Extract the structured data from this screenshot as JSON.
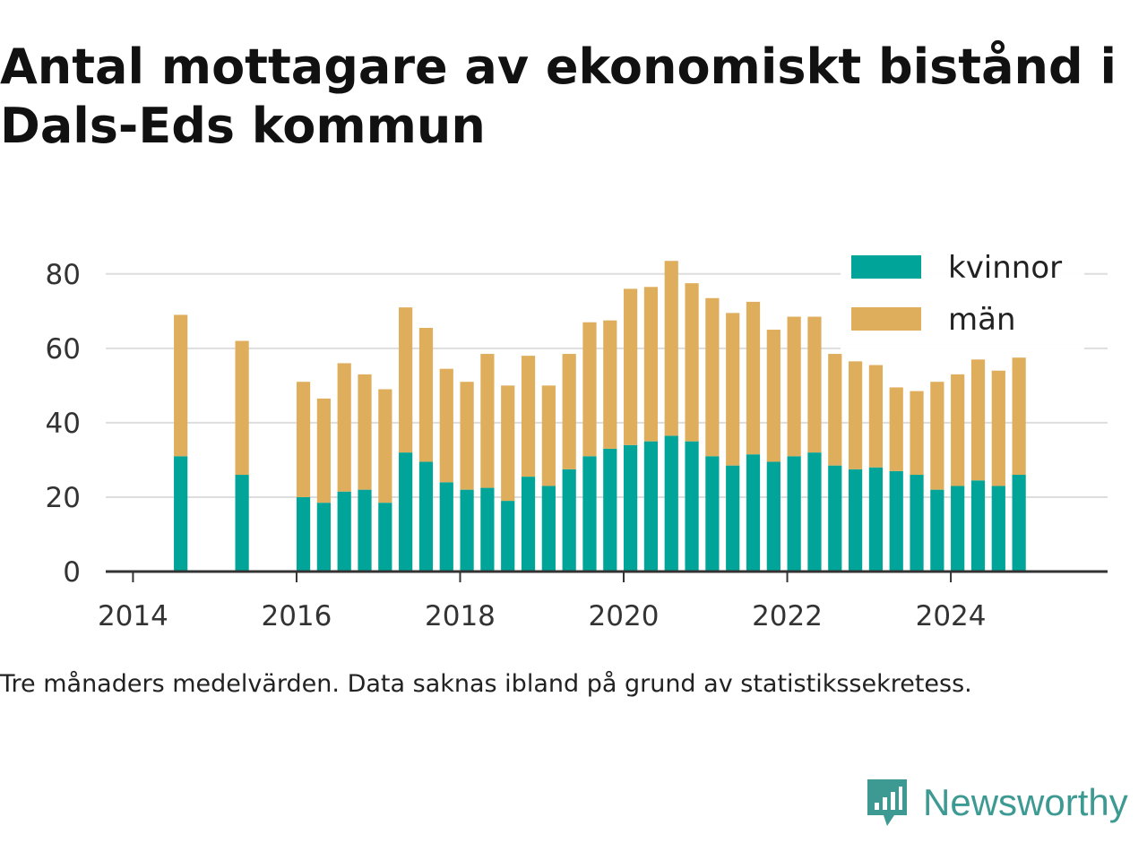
{
  "title": "Antal mottagare av ekonomiskt bistånd i Dals-Eds kommun",
  "caption": "Tre månaders medelvärden. Data saknas ibland på grund av statistikssekretess.",
  "brand": {
    "name": "Newsworthy",
    "icon": "newsworthy-logo-icon",
    "color": "#3d9a93"
  },
  "colors": {
    "kvinnor": "#00a499",
    "man": "#dfae5d",
    "axis": "#333333",
    "grid": "#dddddd"
  },
  "chart_data": {
    "type": "bar",
    "stacked": true,
    "ylim": [
      0,
      85
    ],
    "yticks": [
      "0",
      "20",
      "40",
      "60",
      "80"
    ],
    "xticks": [
      "2014",
      "2016",
      "2018",
      "2020",
      "2022",
      "2024"
    ],
    "xrange": [
      "2013-09",
      "2025-12"
    ],
    "grid": true,
    "legend": {
      "position": "top-right",
      "entries": [
        "kvinnor",
        "män"
      ]
    },
    "x": [
      "2014-08",
      "2015-05",
      "2016-02",
      "2016-05",
      "2016-08",
      "2016-11",
      "2017-02",
      "2017-05",
      "2017-08",
      "2017-11",
      "2018-02",
      "2018-05",
      "2018-08",
      "2018-11",
      "2019-02",
      "2019-05",
      "2019-08",
      "2019-11",
      "2020-02",
      "2020-05",
      "2020-08",
      "2020-11",
      "2021-02",
      "2021-05",
      "2021-08",
      "2021-11",
      "2022-02",
      "2022-05",
      "2022-08",
      "2022-11",
      "2023-02",
      "2023-05",
      "2023-08",
      "2023-11",
      "2024-02",
      "2024-05",
      "2024-08",
      "2024-11"
    ],
    "series": [
      {
        "name": "kvinnor",
        "values": [
          31,
          26,
          20,
          18.5,
          21.5,
          22,
          18.5,
          32,
          29.5,
          24,
          22,
          22.5,
          19,
          25.5,
          23,
          27.5,
          31,
          33,
          34,
          35,
          36.5,
          35,
          31,
          28.5,
          31.5,
          29.5,
          31,
          32,
          28.5,
          27.5,
          28,
          27,
          26,
          22,
          23,
          24.5,
          23,
          26
        ]
      },
      {
        "name": "män",
        "values": [
          38,
          36,
          31,
          28,
          34.5,
          31,
          30.5,
          39,
          36,
          30.5,
          29,
          36,
          31,
          32.5,
          27,
          31,
          36,
          34.5,
          42,
          41.5,
          47,
          42.5,
          42.5,
          41,
          41,
          35.5,
          37.5,
          36.5,
          30,
          29,
          27.5,
          22.5,
          22.5,
          29,
          30,
          32.5,
          31,
          31.5
        ]
      }
    ]
  }
}
